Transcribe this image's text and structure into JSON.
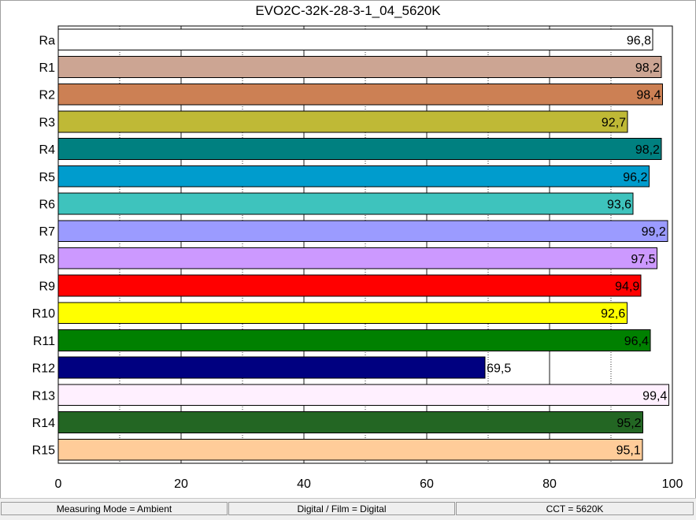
{
  "chart_data": {
    "type": "bar",
    "orientation": "horizontal",
    "title": "EVO2C-32K-28-3-1_04_5620K",
    "categories": [
      "Ra",
      "R1",
      "R2",
      "R3",
      "R4",
      "R5",
      "R6",
      "R7",
      "R8",
      "R9",
      "R10",
      "R11",
      "R12",
      "R13",
      "R14",
      "R15"
    ],
    "values": [
      96.8,
      98.2,
      98.4,
      92.7,
      98.2,
      96.2,
      93.6,
      99.2,
      97.5,
      94.9,
      92.6,
      96.4,
      69.5,
      99.4,
      95.2,
      95.1
    ],
    "value_labels": [
      "96,8",
      "98,2",
      "98,4",
      "92,7",
      "98,2",
      "96,2",
      "93,6",
      "99,2",
      "97,5",
      "94,9",
      "92,6",
      "96,4",
      "69,5",
      "99,4",
      "95,2",
      "95,1"
    ],
    "colors": [
      "#ffffff",
      "#cca593",
      "#cc8054",
      "#bfb936",
      "#008080",
      "#009ccd",
      "#3ec3bd",
      "#9b9bff",
      "#cc99ff",
      "#ff0000",
      "#ffff00",
      "#008000",
      "#000080",
      "#fff0ff",
      "#236623",
      "#ffcc99"
    ],
    "xlim": [
      0,
      100
    ],
    "xticks": [
      0,
      20,
      40,
      60,
      80,
      100
    ],
    "grid": true
  },
  "status": {
    "measuring_mode": "Measuring Mode = Ambient",
    "digital_film": "Digital / Film = Digital",
    "cct": "CCT = 5620K"
  }
}
